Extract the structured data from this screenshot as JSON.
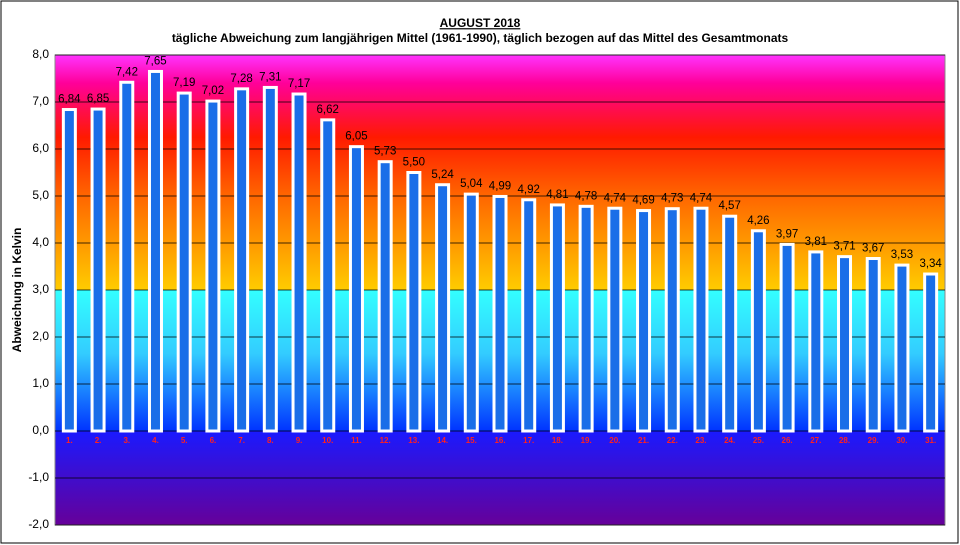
{
  "chart_data": {
    "type": "bar",
    "title": "AUGUST 2018",
    "subtitle": "tägliche Abweichung zum langjährigen Mittel (1961-1990), täglich bezogen auf das Mittel des Gesamtmonats",
    "y_label": "Abweichung in Kelvin",
    "categories": [
      "1.",
      "2.",
      "3.",
      "4.",
      "5.",
      "6.",
      "7.",
      "8.",
      "9.",
      "10.",
      "11.",
      "12.",
      "13.",
      "14.",
      "15.",
      "16.",
      "17.",
      "18.",
      "19.",
      "20.",
      "21.",
      "22.",
      "23.",
      "24.",
      "25.",
      "26.",
      "27.",
      "28.",
      "29.",
      "30.",
      "31."
    ],
    "values": [
      6.84,
      6.85,
      7.42,
      7.65,
      7.19,
      7.02,
      7.28,
      7.31,
      7.17,
      6.62,
      6.05,
      5.73,
      5.5,
      5.24,
      5.04,
      4.99,
      4.92,
      4.81,
      4.78,
      4.74,
      4.69,
      4.73,
      4.74,
      4.57,
      4.26,
      3.97,
      3.81,
      3.71,
      3.67,
      3.53,
      3.34
    ],
    "value_labels": [
      "6,84",
      "6,85",
      "7,42",
      "7,65",
      "7,19",
      "7,02",
      "7,28",
      "7,31",
      "7,17",
      "6,62",
      "6,05",
      "5,73",
      "5,50",
      "5,24",
      "5,04",
      "4,99",
      "4,92",
      "4,81",
      "4,78",
      "4,74",
      "4,69",
      "4,73",
      "4,74",
      "4,57",
      "4,26",
      "3,97",
      "3,81",
      "3,71",
      "3,67",
      "3,53",
      "3,34"
    ],
    "color": "#1a6ee8",
    "ylim": [
      -2,
      8
    ],
    "yticks": [
      {
        "value": -2,
        "label": "-2,0"
      },
      {
        "value": -1,
        "label": "-1,0"
      },
      {
        "value": 0,
        "label": "0,0"
      },
      {
        "value": 1,
        "label": "1,0"
      },
      {
        "value": 2,
        "label": "2,0"
      },
      {
        "value": 3,
        "label": "3,0"
      },
      {
        "value": 4,
        "label": "4,0"
      },
      {
        "value": 5,
        "label": "5,0"
      },
      {
        "value": 6,
        "label": "6,0"
      },
      {
        "value": 7,
        "label": "7,0"
      },
      {
        "value": 8,
        "label": "8,0"
      }
    ],
    "grid": true
  }
}
